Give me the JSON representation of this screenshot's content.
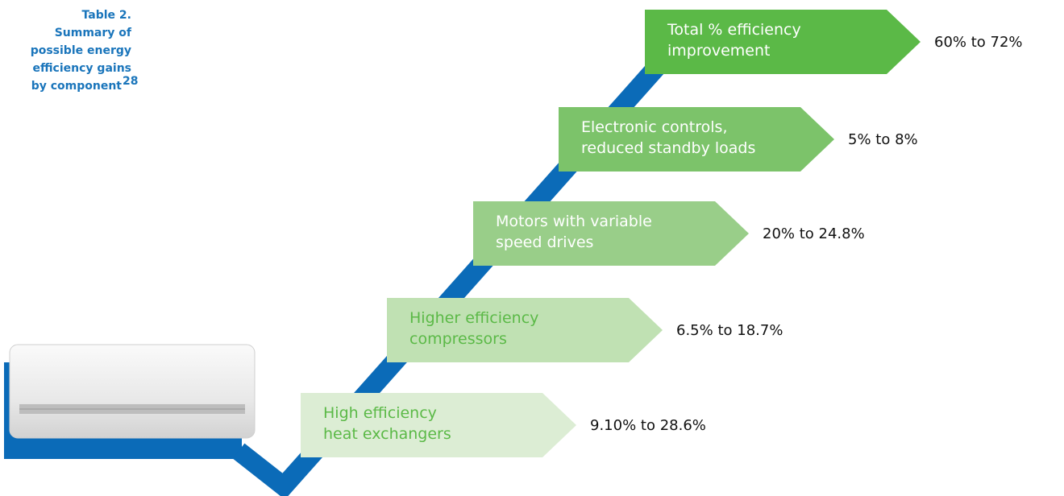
{
  "caption": {
    "lines": [
      "Table 2.",
      "Summary of",
      "possible energy",
      "efficiency gains",
      "by component"
    ],
    "footnote": "28"
  },
  "steps": [
    {
      "label": [
        "Total % efficiency",
        "improvement"
      ],
      "gain": "60% to 72%"
    },
    {
      "label": [
        "Electronic controls,",
        "reduced standby loads"
      ],
      "gain": "5% to 8%"
    },
    {
      "label": [
        "Motors with variable",
        "speed drives"
      ],
      "gain": "20% to 24.8%"
    },
    {
      "label": [
        "Higher efficiency",
        "compressors"
      ],
      "gain": "6.5% to 18.7%"
    },
    {
      "label": [
        "High efficiency",
        "heat exchangers"
      ],
      "gain": "9.10% to 28.6%"
    }
  ]
}
